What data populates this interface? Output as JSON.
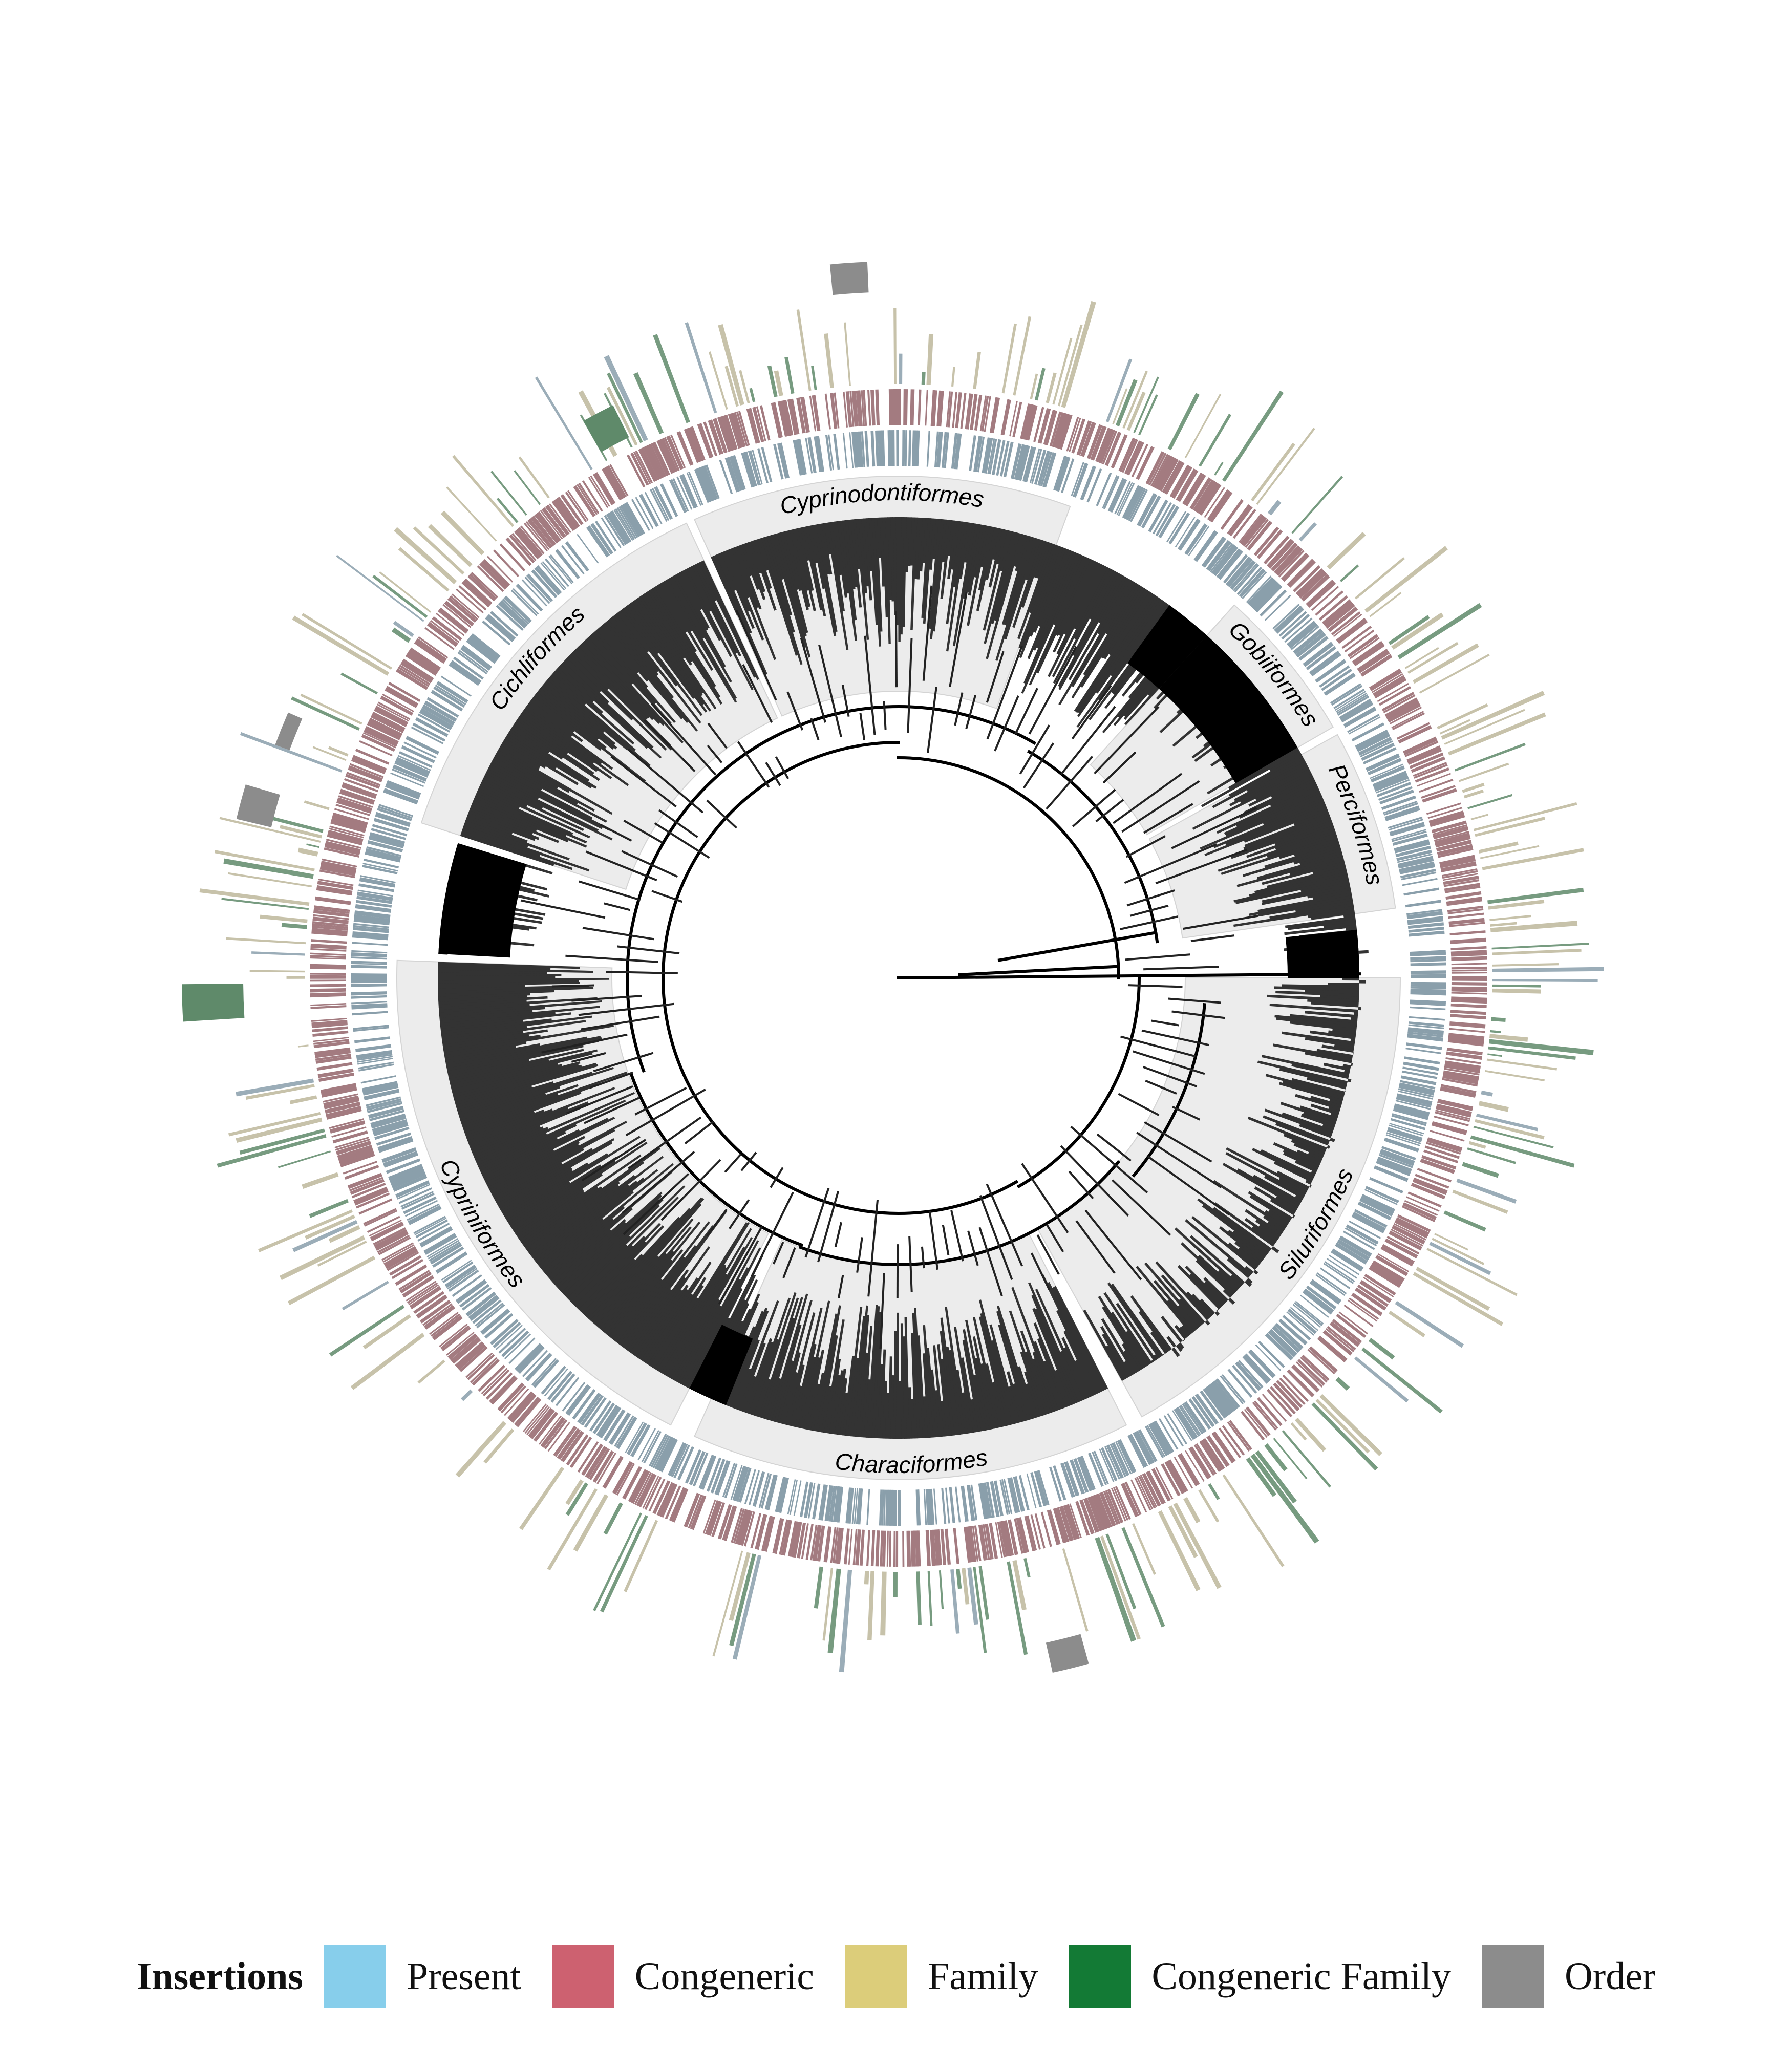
{
  "clades": [
    {
      "label": "Cyprinodontiformes",
      "start": 70,
      "end": 114,
      "dark": false
    },
    {
      "label": "Gobiiformes",
      "start": 30,
      "end": 48,
      "dark": false
    },
    {
      "label": "Perciformes",
      "start": 8,
      "end": 29,
      "dark": false
    },
    {
      "label": "Cichliformes",
      "start": 115,
      "end": 162,
      "dark": false
    },
    {
      "label": "Cypriniformes",
      "start": 178,
      "end": 243,
      "dark": false
    },
    {
      "label": "Characiformes",
      "start": 246,
      "end": 297,
      "dark": false
    },
    {
      "label": "Siluriformes",
      "start": 299,
      "end": 360,
      "dark": false
    }
  ],
  "legend": {
    "title": "Insertions",
    "items": [
      {
        "label": "Present",
        "color": "#87ceeb"
      },
      {
        "label": "Congeneric",
        "color": "#cd6170"
      },
      {
        "label": "Family",
        "color": "#dccd7a"
      },
      {
        "label": "Congeneric Family",
        "color": "#137a35"
      },
      {
        "label": "Order",
        "color": "#8c8c8c"
      }
    ]
  },
  "ring_colors": {
    "present": "#8a9fab",
    "congeneric": "#a37b80",
    "family": "#bdb79b",
    "congeneric_family": "#5f8a6a",
    "order": "#8c8c8c",
    "tree": "#000000",
    "clade_band": "#ececec"
  }
}
